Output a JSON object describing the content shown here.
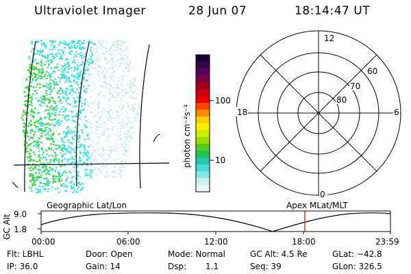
{
  "header": {
    "instrument": "Ultraviolet Imager",
    "date": "28 Jun 07",
    "time": "18:14:47 UT"
  },
  "image_panel": {
    "colors": {
      "cyan": "#33e0e0",
      "green": "#33d633",
      "pale": "#bfe8ea"
    }
  },
  "colorbar": {
    "unit_label": "photon cm⁻²s⁻¹",
    "ticks": [
      "100",
      "10"
    ],
    "colors": [
      "#1a0033",
      "#3a0048",
      "#5a0060",
      "#7a0040",
      "#a00018",
      "#cc0010",
      "#e80000",
      "#ff4400",
      "#ff8800",
      "#ffcc00",
      "#ffee00",
      "#ccee00",
      "#99dd00",
      "#55cc22",
      "#22c455",
      "#22ccaa",
      "#44dddd",
      "#88e8e8",
      "#c8f2f2",
      "#e8f8f8"
    ]
  },
  "polar": {
    "mlt_labels": {
      "top": "12",
      "left": "18",
      "right": "6",
      "bottom": "0"
    },
    "lat_labels": [
      "60",
      "70",
      "80"
    ]
  },
  "timeline": {
    "left_label": "Geographic Lat/Lon",
    "right_label": "Apex MLat/MLT",
    "axis_title": "GC Alt",
    "y_ticks": [
      "9.0",
      "1.8"
    ],
    "x_ticks": [
      "00:00",
      "06:00",
      "12:00",
      "18:00",
      "23:59"
    ],
    "current_time_color": "#cc0000"
  },
  "status": {
    "row1": {
      "flt": "Flt: LBHL",
      "door": "Door: Open",
      "mode": "Mode: Normal",
      "gcalt": "GC Alt: 4.5 Re",
      "glat": "GLat: −42.8"
    },
    "row2": {
      "ip": "IP: 36.0",
      "gain": "Gain: 14",
      "dsp_label": "Dsp:",
      "dsp_value": "1.1",
      "seq": "Seq: 39",
      "glon": "GLon: 326.5"
    }
  }
}
